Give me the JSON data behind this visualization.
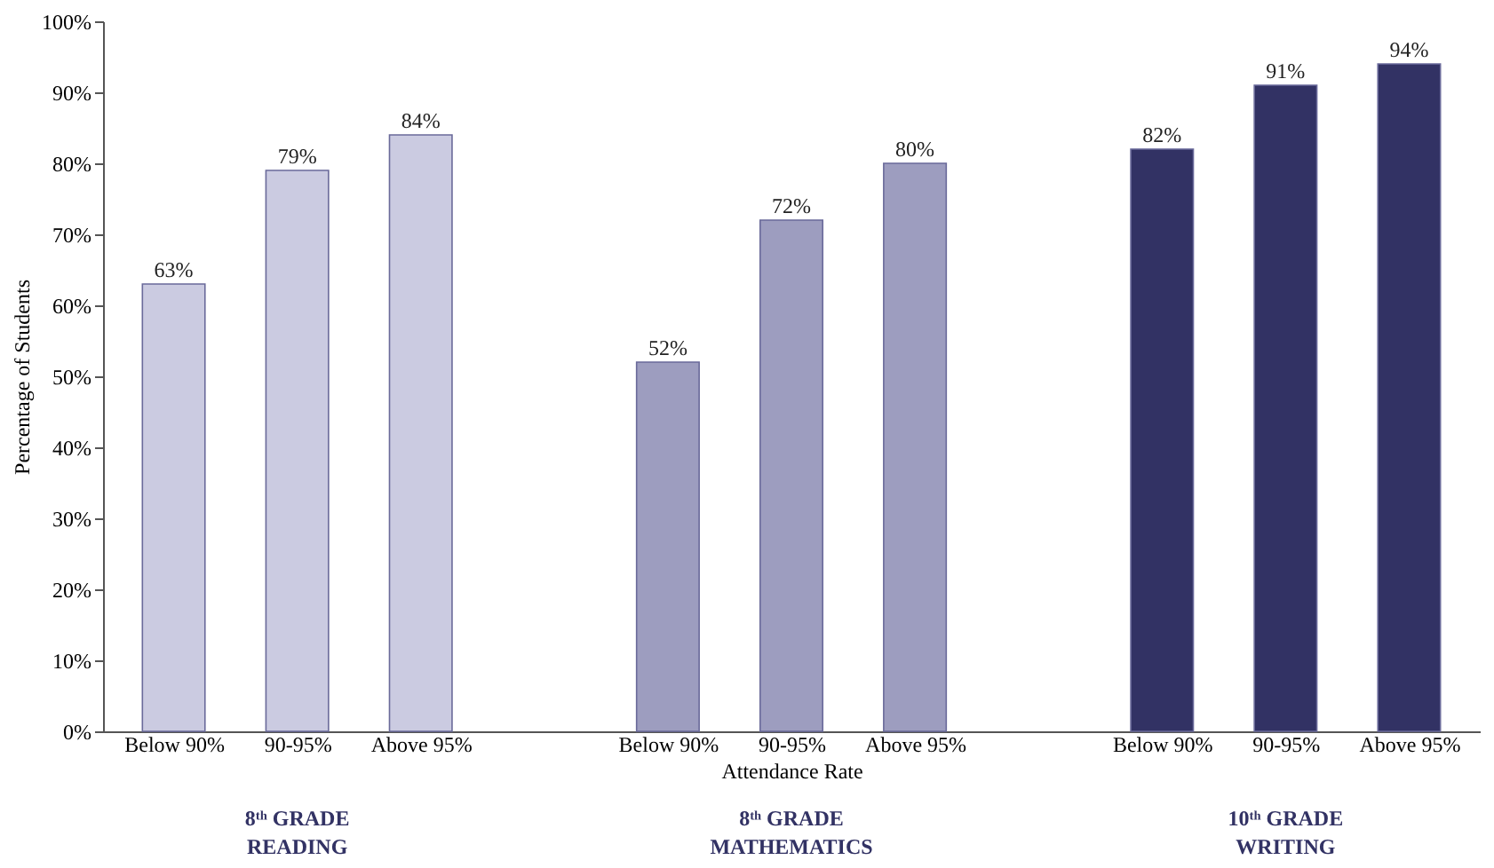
{
  "chart_data": {
    "type": "bar",
    "xlabel": "Attendance Rate",
    "ylabel": "Percentage of Students",
    "categories": [
      "Below 90%",
      "90-95%",
      "Above 95%",
      null,
      "Below 90%",
      "90-95%",
      "Above 95%",
      null,
      "Below 90%",
      "90-95%",
      "Above 95%"
    ],
    "values": [
      63,
      79,
      84,
      null,
      52,
      72,
      80,
      null,
      82,
      91,
      94
    ],
    "value_labels": [
      "63%",
      "79%",
      "84%",
      null,
      "52%",
      "72%",
      "80%",
      null,
      "82%",
      "91%",
      "94%"
    ],
    "colors": [
      "#cbcbe1",
      "#cbcbe1",
      "#cbcbe1",
      null,
      "#9d9dbf",
      "#9d9dbf",
      "#9d9dbf",
      null,
      "#323264",
      "#323264",
      "#323264"
    ],
    "ylim": [
      0,
      100
    ],
    "yticks": [
      {
        "value": 0,
        "label": "0%"
      },
      {
        "value": 10,
        "label": "10%"
      },
      {
        "value": 20,
        "label": "20%"
      },
      {
        "value": 30,
        "label": "30%"
      },
      {
        "value": 40,
        "label": "40%"
      },
      {
        "value": 50,
        "label": "50%"
      },
      {
        "value": 60,
        "label": "60%"
      },
      {
        "value": 70,
        "label": "70%"
      },
      {
        "value": 80,
        "label": "80%"
      },
      {
        "value": 90,
        "label": "90%"
      },
      {
        "value": 100,
        "label": "100%"
      }
    ],
    "annotations": [
      "8ᵗʰ GRADE\nREADING",
      "8ᵗʰ GRADE\nMATHEMATICS",
      "10ᵗʰ GRADE\nWRITING"
    ],
    "grid": false
  }
}
